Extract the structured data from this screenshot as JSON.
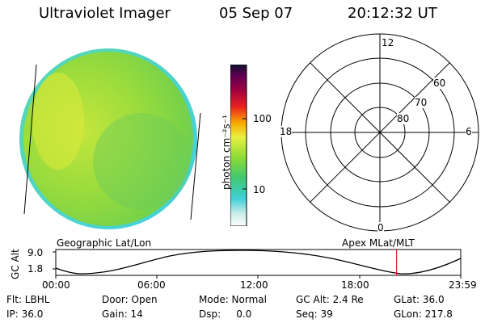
{
  "header": {
    "title": "Ultraviolet Imager",
    "date": "05 Sep 07",
    "time": "20:12:32 UT"
  },
  "colorbar": {
    "unit_label": "photon cm⁻²s⁻¹",
    "tick_100": "100",
    "tick_10": "10"
  },
  "polar": {
    "mlt_top": "12",
    "mlt_left": "18",
    "mlt_right": "6",
    "mlt_bottom": "0",
    "lat_60": "60",
    "lat_70": "70",
    "lat_80": "80"
  },
  "labels": {
    "geo": "Geographic Lat/Lon",
    "apex": "Apex MLat/MLT"
  },
  "altitude": {
    "axis_label": "GC Alt",
    "tick_hi": "9.0",
    "tick_lo": "1.8",
    "time_ticks": [
      "00:00",
      "06:00",
      "12:00",
      "18:00",
      "23:59"
    ],
    "marker_time_hours": 20.2
  },
  "info": {
    "flt": "Flt: LBHL",
    "door": "Door: Open",
    "mode": "Mode: Normal",
    "gcalt": "GC Alt: 2.4 Re",
    "glat": "GLat:  36.0",
    "ip": "IP: 36.0",
    "gain": "Gain: 14",
    "dsp": "Dsp:     0.0",
    "seq": "Seq: 39",
    "glon": "GLon: 217.8"
  },
  "colors": {
    "earth_main": "#8fd83a",
    "earth_bright": "#c8e83a",
    "earth_limb": "#40d0c8",
    "marker": "#e00000"
  }
}
